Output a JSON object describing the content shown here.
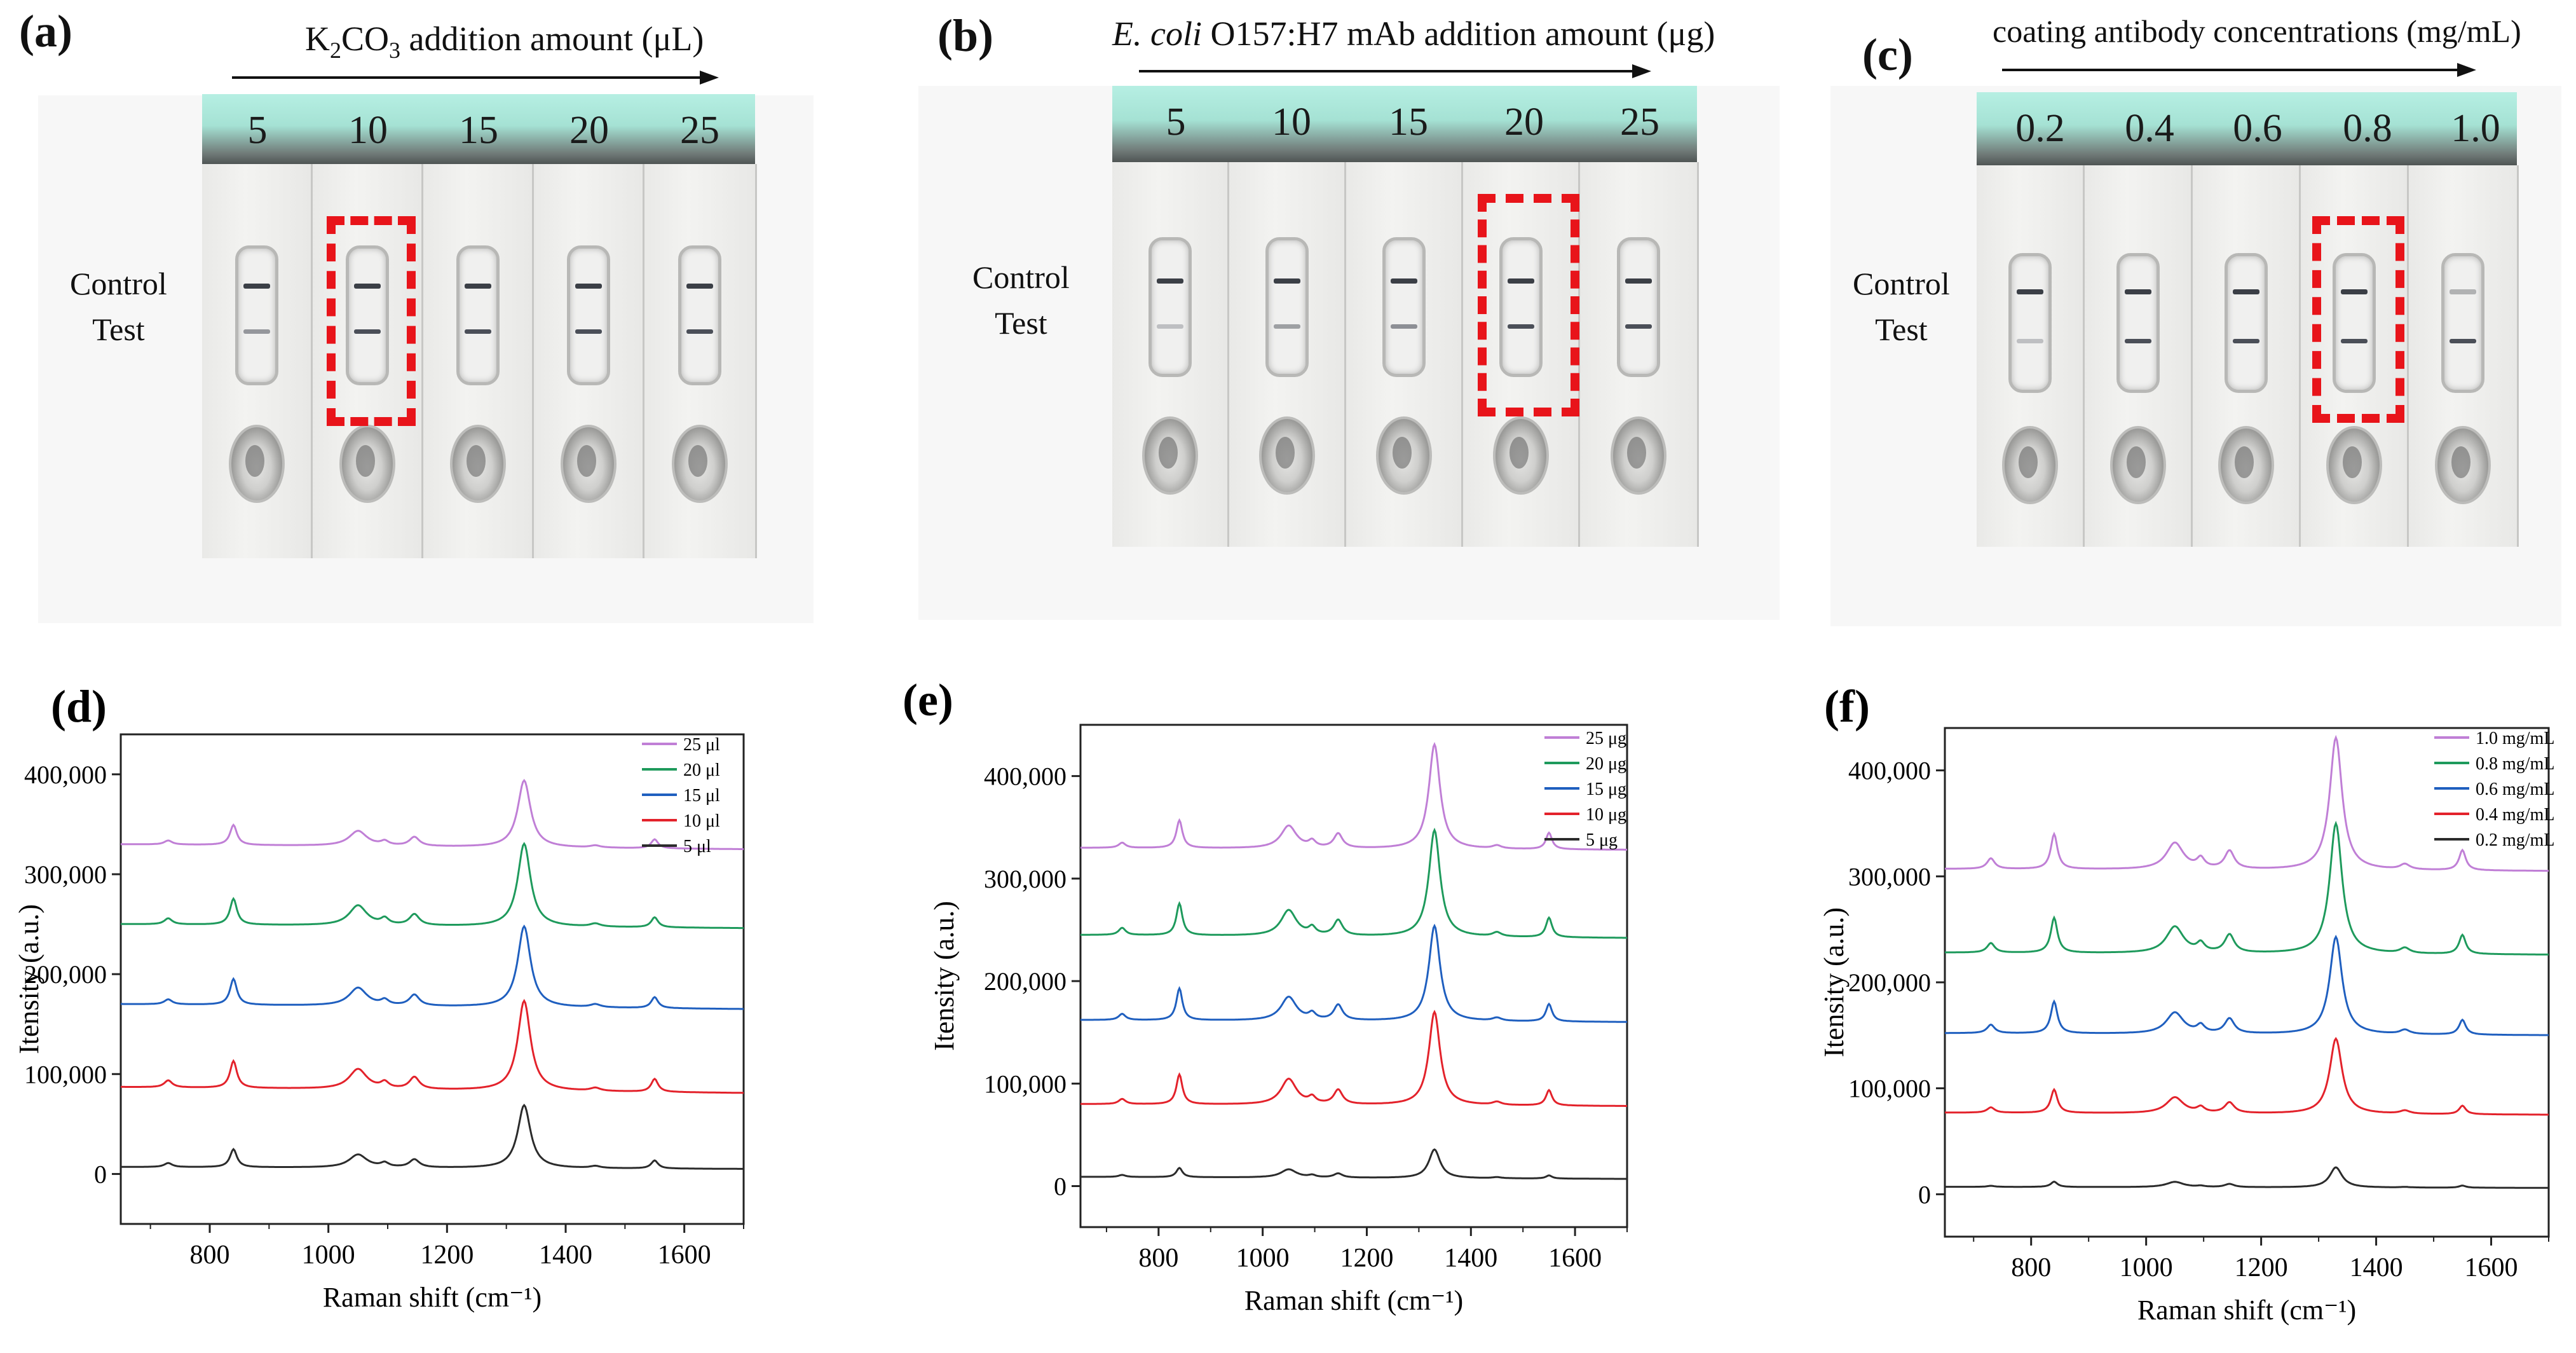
{
  "panels_top": [
    {
      "label": "(a)",
      "title_parts": {
        "pre": "K",
        "sub": "2",
        "mid": "CO",
        "sub2": "3",
        "post": " addition amount (μL)"
      },
      "columns": [
        "5",
        "10",
        "15",
        "20",
        "25"
      ],
      "control_label": "Control",
      "test_label": "Test",
      "highlight_index": 1
    },
    {
      "label": "(b)",
      "title_parts": {
        "italic": "E. coli",
        "post": " O157:H7 mAb addition amount (μg)"
      },
      "columns": [
        "5",
        "10",
        "15",
        "20",
        "25"
      ],
      "control_label": "Control",
      "test_label": "Test",
      "highlight_index": 3
    },
    {
      "label": "(c)",
      "title_parts": {
        "post": "coating antibody concentrations (mg/mL)"
      },
      "columns": [
        "0.2",
        "0.4",
        "0.6",
        "0.8",
        "1.0"
      ],
      "control_label": "Control",
      "test_label": "Test",
      "highlight_index": 3
    }
  ],
  "chart_data": [
    {
      "type": "line",
      "label": "(d)",
      "xlabel": "Raman shift (cm⁻¹)",
      "ylabel": "Itensity (a.u.)",
      "xlim": [
        650,
        1700
      ],
      "ylim": [
        -50000,
        440000
      ],
      "xticks": [
        800,
        1000,
        1200,
        1400,
        1600
      ],
      "yticks": [
        0,
        100000,
        200000,
        300000,
        400000
      ],
      "ytick_labels": [
        "0",
        "100,000",
        "200,000",
        "300,000",
        "400,000"
      ],
      "peak_positions": [
        730,
        840,
        1050,
        1095,
        1145,
        1330,
        1450,
        1550
      ],
      "peak_widths": [
        8,
        7,
        18,
        8,
        10,
        13,
        10,
        7
      ],
      "series": [
        {
          "name": "25 μl",
          "color": "#c07fd6",
          "baseline": 330000,
          "slope": -5000,
          "peaks": [
            4000,
            20000,
            15000,
            4000,
            9000,
            67000,
            2000,
            9000
          ]
        },
        {
          "name": "20 μl",
          "color": "#1e9a5c",
          "baseline": 250000,
          "slope": -4000,
          "peaks": [
            6000,
            26000,
            20000,
            6000,
            11000,
            83000,
            3000,
            10000
          ]
        },
        {
          "name": "15 μl",
          "color": "#1f5fbf",
          "baseline": 170000,
          "slope": -5000,
          "peaks": [
            5000,
            26000,
            18000,
            5000,
            11000,
            81000,
            3000,
            11000
          ]
        },
        {
          "name": "10 μl",
          "color": "#e3222b",
          "baseline": 87000,
          "slope": -6000,
          "peaks": [
            7000,
            27000,
            20000,
            6000,
            12000,
            90000,
            3000,
            13000
          ]
        },
        {
          "name": "5 μl",
          "color": "#2b2b2b",
          "baseline": 7000,
          "slope": -2000,
          "peaks": [
            4000,
            18000,
            13000,
            4000,
            8000,
            63000,
            2000,
            8000
          ]
        }
      ]
    },
    {
      "type": "line",
      "label": "(e)",
      "xlabel": "Raman shift (cm⁻¹)",
      "ylabel": "Itensity (a.u.)",
      "xlim": [
        650,
        1700
      ],
      "ylim": [
        -40000,
        450000
      ],
      "xticks": [
        800,
        1000,
        1200,
        1400,
        1600
      ],
      "yticks": [
        0,
        100000,
        200000,
        300000,
        400000
      ],
      "ytick_labels": [
        "0",
        "100,000",
        "200,000",
        "300,000",
        "400,000"
      ],
      "peak_positions": [
        730,
        840,
        1050,
        1095,
        1145,
        1330,
        1450,
        1550
      ],
      "peak_widths": [
        8,
        7,
        18,
        8,
        10,
        13,
        10,
        7
      ],
      "series": [
        {
          "name": "25 μg",
          "color": "#c07fd6",
          "baseline": 330000,
          "slope": -2000,
          "peaks": [
            5000,
            27000,
            22000,
            6000,
            14000,
            102000,
            3000,
            16000
          ]
        },
        {
          "name": "20 μg",
          "color": "#1e9a5c",
          "baseline": 245000,
          "slope": -3000,
          "peaks": [
            7000,
            31000,
            25000,
            7000,
            15000,
            104000,
            4000,
            19000
          ]
        },
        {
          "name": "15 μg",
          "color": "#1f5fbf",
          "baseline": 162000,
          "slope": -2000,
          "peaks": [
            6000,
            31000,
            23000,
            6000,
            15000,
            93000,
            3000,
            17000
          ]
        },
        {
          "name": "10 μg",
          "color": "#e3222b",
          "baseline": 80000,
          "slope": -2000,
          "peaks": [
            5000,
            29000,
            25000,
            6000,
            14000,
            91000,
            3000,
            15000
          ]
        },
        {
          "name": "5 μg",
          "color": "#2b2b2b",
          "baseline": 9000,
          "slope": -2000,
          "peaks": [
            2000,
            9000,
            8000,
            2000,
            4000,
            28000,
            1000,
            3000
          ]
        }
      ]
    },
    {
      "type": "line",
      "label": "(f)",
      "xlabel": "Raman shift (cm⁻¹)",
      "ylabel": "Itensity (a.u.)",
      "xlim": [
        650,
        1700
      ],
      "ylim": [
        -40000,
        440000
      ],
      "xticks": [
        800,
        1000,
        1200,
        1400,
        1600
      ],
      "yticks": [
        0,
        100000,
        200000,
        300000,
        400000
      ],
      "ytick_labels": [
        "0",
        "100,000",
        "200,000",
        "300,000",
        "400,000"
      ],
      "peak_positions": [
        730,
        840,
        1050,
        1095,
        1145,
        1330,
        1450,
        1550
      ],
      "peak_widths": [
        8,
        7,
        18,
        8,
        10,
        13,
        10,
        7
      ],
      "series": [
        {
          "name": "1.0 mg/mL",
          "color": "#c07fd6",
          "baseline": 307000,
          "slope": -2000,
          "peaks": [
            10000,
            33000,
            25000,
            9000,
            17000,
            125000,
            5000,
            19000
          ]
        },
        {
          "name": "0.8 mg/mL",
          "color": "#1e9a5c",
          "baseline": 228000,
          "slope": -2000,
          "peaks": [
            9000,
            33000,
            25000,
            8000,
            17000,
            123000,
            5000,
            18000
          ]
        },
        {
          "name": "0.6 mg/mL",
          "color": "#1f5fbf",
          "baseline": 152000,
          "slope": -2000,
          "peaks": [
            8000,
            30000,
            20000,
            7000,
            14000,
            92000,
            4000,
            14000
          ]
        },
        {
          "name": "0.4 mg/mL",
          "color": "#e3222b",
          "baseline": 77000,
          "slope": -2000,
          "peaks": [
            5000,
            22000,
            15000,
            5000,
            10000,
            71000,
            3000,
            8000
          ]
        },
        {
          "name": "0.2 mg/mL",
          "color": "#2b2b2b",
          "baseline": 7000,
          "slope": -1000,
          "peaks": [
            1000,
            5000,
            5000,
            1000,
            3000,
            19000,
            500,
            2000
          ]
        }
      ]
    }
  ]
}
